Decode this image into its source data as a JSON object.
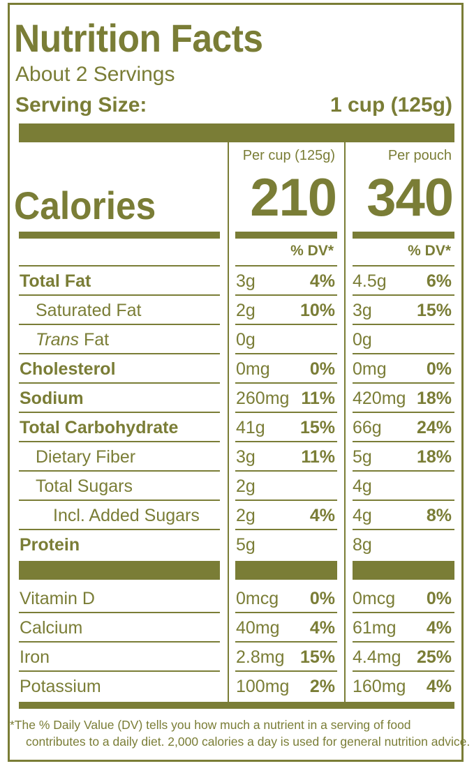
{
  "title": "Nutrition Facts",
  "servings": "About 2 Servings",
  "serving_size_label": "Serving Size:",
  "serving_size_value": "1 cup (125g)",
  "columns": [
    {
      "header": "Per cup (125g)",
      "calories": "210",
      "dv_header": "% DV*"
    },
    {
      "header": "Per pouch",
      "calories": "340",
      "dv_header": "% DV*"
    }
  ],
  "calories_label": "Calories",
  "rows": [
    {
      "label": "Total Fat",
      "bold": true,
      "indent": 0,
      "c1_amt": "3g",
      "c1_pct": "4%",
      "c2_amt": "4.5g",
      "c2_pct": "6%"
    },
    {
      "label": "Saturated Fat",
      "bold": false,
      "indent": 1,
      "c1_amt": "2g",
      "c1_pct": "10%",
      "c2_amt": "3g",
      "c2_pct": "15%"
    },
    {
      "label_italic": "Trans",
      "label": " Fat",
      "bold": false,
      "indent": 1,
      "c1_amt": "0g",
      "c1_pct": "",
      "c2_amt": "0g",
      "c2_pct": ""
    },
    {
      "label": "Cholesterol",
      "bold": true,
      "indent": 0,
      "c1_amt": "0mg",
      "c1_pct": "0%",
      "c2_amt": "0mg",
      "c2_pct": "0%"
    },
    {
      "label": "Sodium",
      "bold": true,
      "indent": 0,
      "c1_amt": "260mg",
      "c1_pct": "11%",
      "c2_amt": "420mg",
      "c2_pct": "18%"
    },
    {
      "label": "Total Carbohydrate",
      "bold": true,
      "indent": 0,
      "c1_amt": "41g",
      "c1_pct": "15%",
      "c2_amt": "66g",
      "c2_pct": "24%"
    },
    {
      "label": "Dietary Fiber",
      "bold": false,
      "indent": 1,
      "c1_amt": "3g",
      "c1_pct": "11%",
      "c2_amt": "5g",
      "c2_pct": "18%"
    },
    {
      "label": "Total Sugars",
      "bold": false,
      "indent": 1,
      "c1_amt": "2g",
      "c1_pct": "",
      "c2_amt": "4g",
      "c2_pct": ""
    },
    {
      "label": "Incl. Added Sugars",
      "bold": false,
      "indent": 2,
      "c1_amt": "2g",
      "c1_pct": "4%",
      "c2_amt": "4g",
      "c2_pct": "8%"
    },
    {
      "label": "Protein",
      "bold": true,
      "indent": 0,
      "c1_amt": "5g",
      "c1_pct": "",
      "c2_amt": "8g",
      "c2_pct": ""
    }
  ],
  "vitamins": [
    {
      "label": "Vitamin D",
      "c1_amt": "0mcg",
      "c1_pct": "0%",
      "c2_amt": "0mcg",
      "c2_pct": "0%"
    },
    {
      "label": "Calcium",
      "c1_amt": "40mg",
      "c1_pct": "4%",
      "c2_amt": "61mg",
      "c2_pct": "4%"
    },
    {
      "label": "Iron",
      "c1_amt": "2.8mg",
      "c1_pct": "15%",
      "c2_amt": "4.4mg",
      "c2_pct": "25%"
    },
    {
      "label": "Potassium",
      "c1_amt": "100mg",
      "c1_pct": "2%",
      "c2_amt": "160mg",
      "c2_pct": "4%"
    }
  ],
  "footnote_line1": "*The % Daily Value (DV) tells you how much a nutrient in a serving of food",
  "footnote_line2": "contributes to a daily diet. 2,000 calories a day is used for general nutrition advice.",
  "colors": {
    "primary": "#7a7d36"
  }
}
